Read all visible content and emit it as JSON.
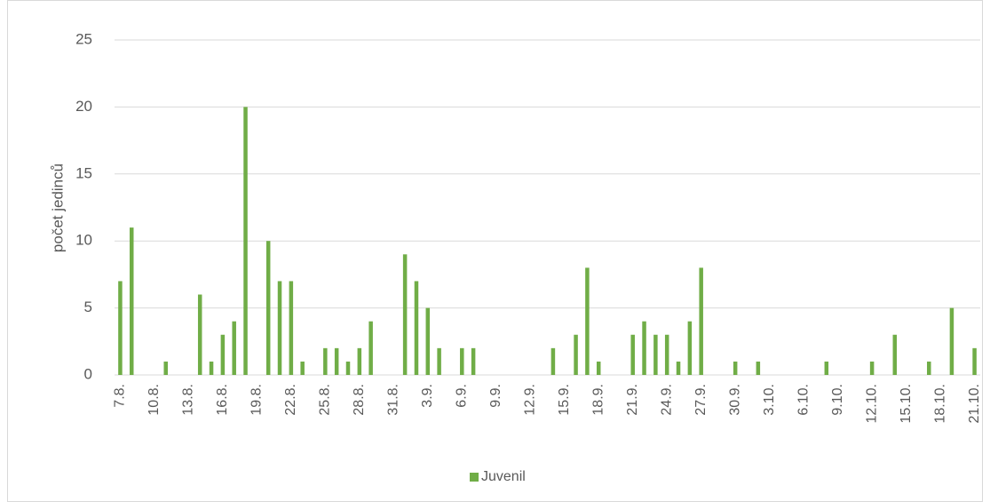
{
  "chart_data": {
    "type": "bar",
    "y_label": "počet jedinců",
    "categories": [
      "7.8.",
      null,
      null,
      "10.8.",
      null,
      null,
      "13.8.",
      null,
      null,
      "16.8.",
      null,
      null,
      "19.8.",
      null,
      null,
      "22.8.",
      null,
      null,
      "25.8.",
      null,
      null,
      "28.8.",
      null,
      null,
      "31.8.",
      null,
      null,
      "3.9.",
      null,
      null,
      "6.9.",
      null,
      null,
      "9.9.",
      null,
      null,
      "12.9.",
      null,
      null,
      "15.9.",
      null,
      null,
      "18.9.",
      null,
      null,
      "21.9.",
      null,
      null,
      "24.9.",
      null,
      null,
      "27.9.",
      null,
      null,
      "30.9.",
      null,
      null,
      "3.10.",
      null,
      null,
      "6.10.",
      null,
      null,
      "9.10.",
      null,
      null,
      "12.10.",
      null,
      null,
      "15.10.",
      null,
      null,
      "18.10.",
      null,
      null,
      "21.10."
    ],
    "series": [
      {
        "name": "Juvenil",
        "color": "#70ad47",
        "values": [
          7,
          11,
          0,
          0,
          1,
          0,
          0,
          6,
          1,
          3,
          4,
          20,
          0,
          10,
          7,
          7,
          1,
          0,
          2,
          2,
          1,
          2,
          4,
          0,
          0,
          9,
          7,
          5,
          2,
          0,
          2,
          2,
          0,
          0,
          0,
          0,
          0,
          0,
          2,
          0,
          3,
          8,
          1,
          0,
          0,
          3,
          4,
          3,
          3,
          1,
          4,
          8,
          0,
          0,
          1,
          0,
          1,
          0,
          0,
          0,
          0,
          0,
          1,
          0,
          0,
          0,
          1,
          0,
          3,
          0,
          0,
          1,
          0,
          5,
          0,
          2
        ]
      }
    ],
    "ylim": [
      0,
      25
    ],
    "yticks": [
      0,
      5,
      10,
      15,
      20,
      25
    ],
    "grid": true,
    "legend": "bottom"
  }
}
